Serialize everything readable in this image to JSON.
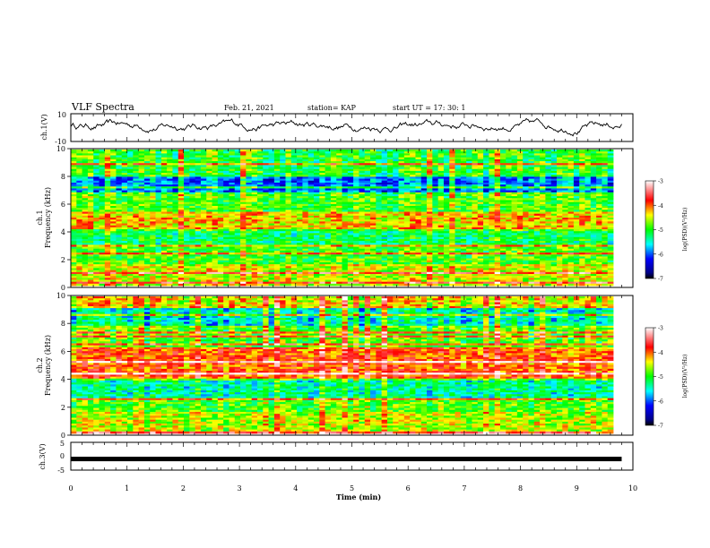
{
  "header": {
    "title": "VLF Spectra",
    "date": "Feb. 21, 2021",
    "station": "station= KAP",
    "start": "start  UT =   17: 30: 1"
  },
  "chart_data": [
    {
      "type": "line",
      "panel": "ch1-waveform",
      "ylabel": "ch.1(V)",
      "ylim": [
        -10,
        10
      ],
      "yticks": [
        -10,
        10
      ],
      "xlim": [
        0,
        10
      ],
      "xlabel": "",
      "series": [
        {
          "x_range": [
            0,
            9.8
          ],
          "mean": 1.5,
          "amplitude": 6
        }
      ],
      "color": "#000000"
    },
    {
      "type": "heatmap",
      "panel": "ch1-spectrogram",
      "ylabel": "Frequency (kHz)",
      "channel_label": "ch.1",
      "ylim": [
        0,
        10
      ],
      "yticks": [
        0,
        2,
        4,
        6,
        8,
        10
      ],
      "xlim": [
        0,
        10
      ],
      "colorbar": {
        "label": "log(PSD)(V²/Hz)",
        "range": [
          -7,
          -3
        ],
        "ticks": [
          -3,
          -4,
          -5,
          -6,
          -7
        ]
      }
    },
    {
      "type": "heatmap",
      "panel": "ch2-spectrogram",
      "ylabel": "Frequency (kHz)",
      "channel_label": "ch.2",
      "ylim": [
        0,
        10
      ],
      "yticks": [
        0,
        2,
        4,
        6,
        8,
        10
      ],
      "xlim": [
        0,
        10
      ],
      "colorbar": {
        "label": "log(PSD)(V²/Hz)",
        "range": [
          -7,
          -3
        ],
        "ticks": [
          -3,
          -4,
          -5,
          -6,
          -7
        ]
      }
    },
    {
      "type": "line",
      "panel": "ch3-waveform",
      "ylabel": "ch.3(V)",
      "ylim": [
        -5,
        5
      ],
      "yticks": [
        -5,
        0,
        5
      ],
      "xlim": [
        0,
        10
      ],
      "xlabel": "Time  (min)",
      "xticks": [
        0,
        1,
        2,
        3,
        4,
        5,
        6,
        7,
        8,
        9,
        10
      ],
      "series": [
        {
          "x_range": [
            0,
            9.8
          ],
          "value": -1
        }
      ],
      "color": "#000000"
    }
  ]
}
